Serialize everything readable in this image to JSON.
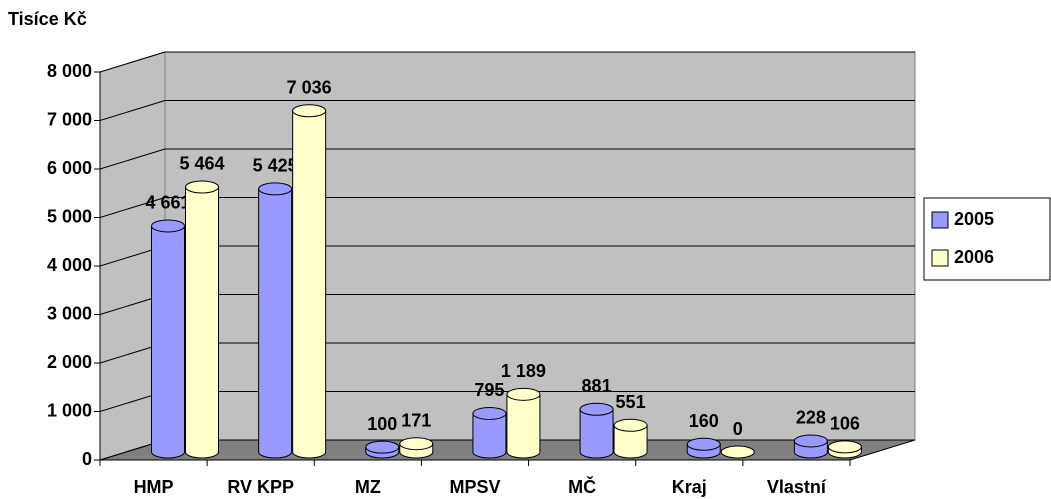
{
  "chart_data": {
    "type": "bar3d",
    "title": "Tisíce Kč",
    "categories": [
      "HMP",
      "RV KPP",
      "MZ",
      "MPSV",
      "MČ",
      "Kraj",
      "Vlastní"
    ],
    "series": [
      {
        "name": "2005",
        "color": "#9999ff",
        "values": [
          4661,
          5425,
          100,
          795,
          881,
          160,
          228
        ],
        "value_labels": [
          "4 661",
          "5 425",
          "100",
          "795",
          "881",
          "160",
          "228"
        ]
      },
      {
        "name": "2006",
        "color": "#ffffcc",
        "values": [
          5464,
          7036,
          171,
          1189,
          551,
          0,
          106
        ],
        "value_labels": [
          "5 464",
          "7 036",
          "171",
          "1 189",
          "551",
          "0",
          "106"
        ]
      }
    ],
    "ylim": [
      0,
      8000
    ],
    "yticks": [
      0,
      {
        "value": 1000,
        "label": "1 000"
      },
      {
        "value": 2000,
        "label": "2 000"
      },
      {
        "value": 3000,
        "label": "3 000"
      },
      {
        "value": 4000,
        "label": "4 000"
      },
      {
        "value": 5000,
        "label": "5 000"
      },
      {
        "value": 6000,
        "label": "6 000"
      },
      {
        "value": 7000,
        "label": "7 000"
      },
      {
        "value": 8000,
        "label": "8 000"
      }
    ],
    "grid": true,
    "legend": "right"
  }
}
